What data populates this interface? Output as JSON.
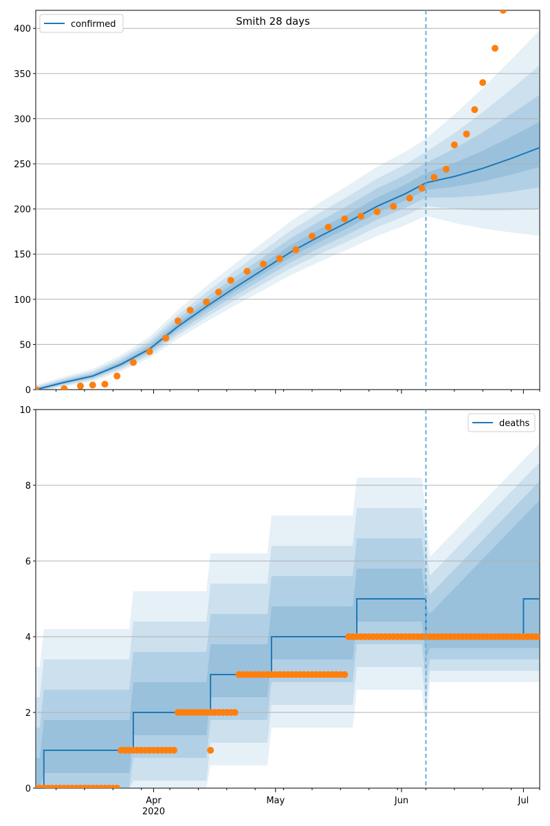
{
  "chart_data": [
    {
      "type": "scatter",
      "title": "Smith 28 days",
      "xlabel": "",
      "ylabel": "",
      "x_range": [
        "2020-03-03",
        "2020-07-05"
      ],
      "ylim": [
        0,
        420
      ],
      "yticks": [
        0,
        50,
        100,
        150,
        200,
        250,
        300,
        350,
        400
      ],
      "grid": "horizontal",
      "legend": {
        "position": "top-left",
        "entries": [
          "confirmed"
        ]
      },
      "forecast_start": "2020-06-07",
      "series": [
        {
          "name": "confirmed",
          "kind": "line",
          "color": "#1f77b4",
          "points": [
            [
              "2020-03-03",
              0
            ],
            [
              "2020-03-10",
              8
            ],
            [
              "2020-03-17",
              15
            ],
            [
              "2020-03-24",
              28
            ],
            [
              "2020-03-31",
              45
            ],
            [
              "2020-04-07",
              70
            ],
            [
              "2020-04-14",
              92
            ],
            [
              "2020-04-21",
              113
            ],
            [
              "2020-04-28",
              133
            ],
            [
              "2020-05-05",
              153
            ],
            [
              "2020-05-12",
              170
            ],
            [
              "2020-05-19",
              186
            ],
            [
              "2020-05-26",
              203
            ],
            [
              "2020-06-02",
              217
            ],
            [
              "2020-06-07",
              229
            ],
            [
              "2020-06-14",
              236
            ],
            [
              "2020-06-21",
              245
            ],
            [
              "2020-06-28",
              256
            ],
            [
              "2020-07-05",
              268
            ]
          ]
        },
        {
          "kind": "scatter",
          "color": "#ff7f0e",
          "points": [
            [
              "2020-03-03",
              0
            ],
            [
              "2020-03-10",
              1
            ],
            [
              "2020-03-14",
              4
            ],
            [
              "2020-03-17",
              5
            ],
            [
              "2020-03-20",
              6
            ],
            [
              "2020-03-23",
              15
            ],
            [
              "2020-03-27",
              30
            ],
            [
              "2020-03-31",
              42
            ],
            [
              "2020-04-04",
              57
            ],
            [
              "2020-04-07",
              76
            ],
            [
              "2020-04-10",
              88
            ],
            [
              "2020-04-14",
              97
            ],
            [
              "2020-04-17",
              108
            ],
            [
              "2020-04-20",
              121
            ],
            [
              "2020-04-24",
              131
            ],
            [
              "2020-04-28",
              139
            ],
            [
              "2020-05-02",
              145
            ],
            [
              "2020-05-06",
              155
            ],
            [
              "2020-05-10",
              170
            ],
            [
              "2020-05-14",
              180
            ],
            [
              "2020-05-18",
              189
            ],
            [
              "2020-05-22",
              192
            ],
            [
              "2020-05-26",
              197
            ],
            [
              "2020-05-30",
              203
            ],
            [
              "2020-06-03",
              212
            ],
            [
              "2020-06-06",
              223
            ],
            [
              "2020-06-09",
              235
            ],
            [
              "2020-06-12",
              244
            ],
            [
              "2020-06-14",
              271
            ],
            [
              "2020-06-17",
              283
            ],
            [
              "2020-06-19",
              310
            ],
            [
              "2020-06-21",
              340
            ],
            [
              "2020-06-24",
              378
            ],
            [
              "2020-06-26",
              420
            ]
          ]
        }
      ]
    },
    {
      "type": "scatter",
      "xlabel": "",
      "ylabel": "",
      "x_range": [
        "2020-03-03",
        "2020-07-05"
      ],
      "ylim": [
        0,
        10
      ],
      "yticks": [
        0,
        2,
        4,
        6,
        8,
        10
      ],
      "xticks": [
        {
          "date": "2020-04-01",
          "label": "Apr",
          "sublabel": "2020"
        },
        {
          "date": "2020-05-01",
          "label": "May"
        },
        {
          "date": "2020-06-01",
          "label": "Jun"
        },
        {
          "date": "2020-07-01",
          "label": "Jul"
        }
      ],
      "grid": "horizontal",
      "legend": {
        "position": "top-right",
        "entries": [
          "deaths"
        ]
      },
      "forecast_start": "2020-06-07",
      "series": [
        {
          "name": "deaths",
          "kind": "step",
          "color": "#1f77b4",
          "points": [
            [
              "2020-03-03",
              0
            ],
            [
              "2020-03-05",
              1
            ],
            [
              "2020-03-27",
              2
            ],
            [
              "2020-04-15",
              3
            ],
            [
              "2020-04-30",
              4
            ],
            [
              "2020-05-21",
              5
            ],
            [
              "2020-06-07",
              4
            ],
            [
              "2020-07-01",
              5
            ],
            [
              "2020-07-05",
              5
            ]
          ]
        },
        {
          "kind": "scatter",
          "color": "#ff7f0e",
          "segments": [
            {
              "start": "2020-03-03",
              "end": "2020-03-23",
              "value": 0
            },
            {
              "start": "2020-03-24",
              "end": "2020-04-06",
              "value": 1
            },
            {
              "start": "2020-04-07",
              "end": "2020-04-15",
              "value": 2
            },
            {
              "start": "2020-04-16",
              "end": "2020-04-21",
              "value": 2
            },
            {
              "start": "2020-04-22",
              "end": "2020-05-18",
              "value": 3
            },
            {
              "start": "2020-05-19",
              "end": "2020-07-05",
              "value": 4
            }
          ],
          "points": [
            [
              "2020-04-15",
              1
            ]
          ]
        }
      ]
    }
  ]
}
